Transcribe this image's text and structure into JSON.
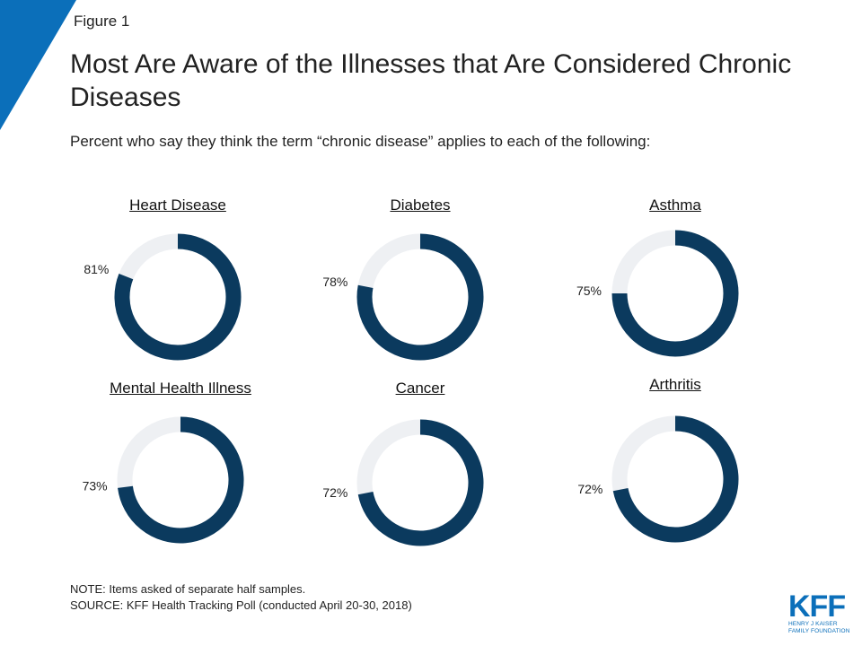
{
  "figure_label": "Figure 1",
  "title": "Most Are Aware of the Illnesses that Are Considered Chronic Diseases",
  "subtitle": "Percent who say they think the term “chronic disease” applies to each of the following:",
  "colors": {
    "filled": "#0b3a5e",
    "track": "#eef0f3",
    "accent": "#0b6fba"
  },
  "chart_data": {
    "type": "pie",
    "subtype": "donut",
    "unit": "%",
    "items": [
      {
        "name": "Heart Disease",
        "value": 81,
        "label": "81%"
      },
      {
        "name": "Diabetes",
        "value": 78,
        "label": "78%"
      },
      {
        "name": "Asthma",
        "value": 75,
        "label": "75%"
      },
      {
        "name": "Mental Health Illness",
        "value": 73,
        "label": "73%"
      },
      {
        "name": "Cancer",
        "value": 72,
        "label": "72%"
      },
      {
        "name": "Arthritis",
        "value": 72,
        "label": "72%"
      }
    ]
  },
  "note": "NOTE: Items asked of separate half samples.",
  "source": "SOURCE: KFF Health Tracking Poll (conducted April 20-30, 2018)",
  "logo": {
    "main": "KFF",
    "line1": "HENRY J KAISER",
    "line2": "FAMILY FOUNDATION"
  }
}
